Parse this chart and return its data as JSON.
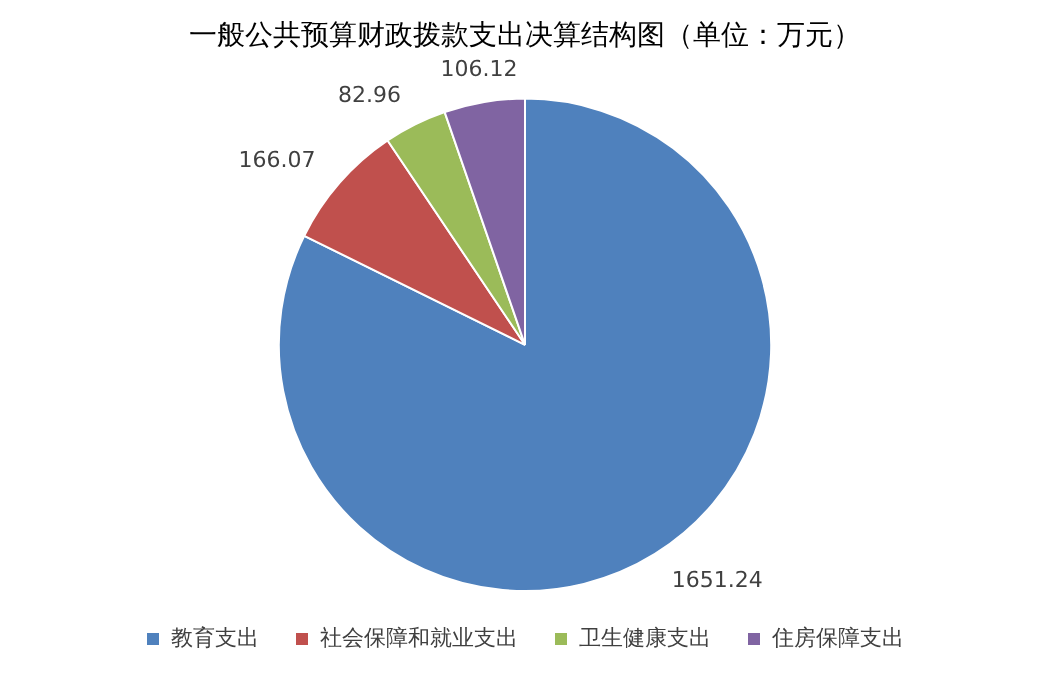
{
  "chart_data": {
    "type": "pie",
    "title": "一般公共预算财政拨款支出决算结构图（单位：万元）",
    "categories": [
      "教育支出",
      "社会保障和就业支出",
      "卫生健康支出",
      "住房保障支出"
    ],
    "values": [
      1651.24,
      166.07,
      82.96,
      106.12
    ],
    "colors": [
      "#4f81bd",
      "#c0504d",
      "#9bbb59",
      "#8064a2"
    ],
    "data_labels": true,
    "legend": "bottom"
  }
}
